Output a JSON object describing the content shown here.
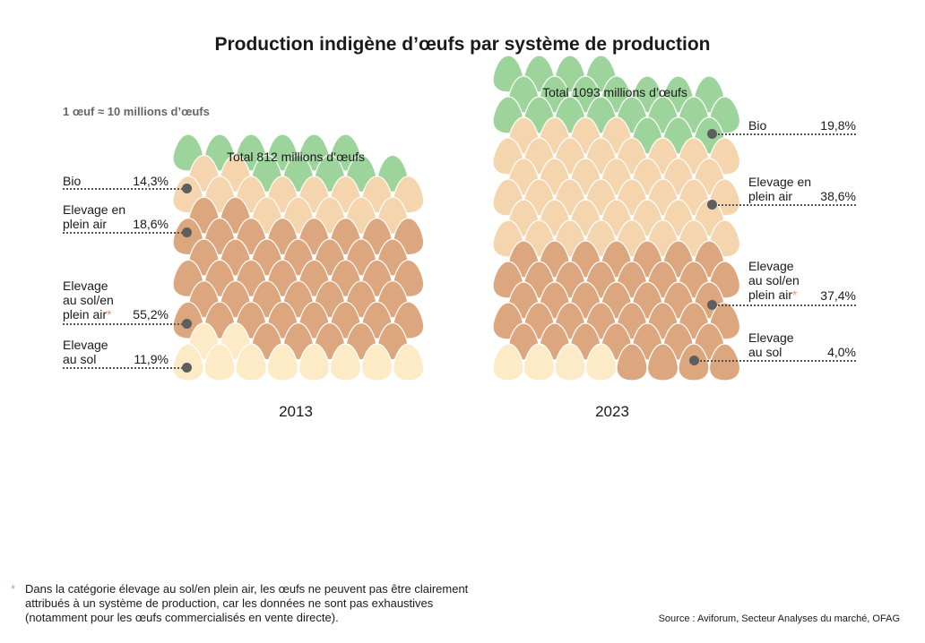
{
  "title": "Production indigène d’œufs par système de production",
  "unit_note": "1 œuf ≈ 10 millions d’œufs",
  "colors": {
    "bio": "#9dd49b",
    "plein_air": "#f4d5ae",
    "sol_plein_air": "#dca77f",
    "sol": "#fdebc8",
    "outline": "#ffffff",
    "leader": "#555555",
    "asterisk": "#e8926f"
  },
  "chart_data": {
    "type": "pictogram",
    "title": "Production indigène d’œufs par système de production",
    "unit": "1 œuf ≈ 10 millions d’œufs",
    "categories": [
      "Bio",
      "Elevage en plein air",
      "Elevage au sol/en plein air*",
      "Elevage au sol"
    ],
    "series": [
      {
        "year": "2013",
        "total_label": "Total 812 millions d’œufs",
        "total": 812,
        "shares_pct": [
          14.3,
          18.6,
          55.2,
          11.9
        ]
      },
      {
        "year": "2023",
        "total_label": "Total 1093 millions d’œufs",
        "total": 1093,
        "shares_pct": [
          19.8,
          38.6,
          37.4,
          4.0
        ]
      }
    ]
  },
  "panel_2013": {
    "total": "Total 812 millions d’œufs",
    "year": "2013",
    "labels": [
      {
        "text": "Bio",
        "pct": "14,3%"
      },
      {
        "text1": "Elevage en",
        "text2": "plein air",
        "pct": "18,6%"
      },
      {
        "text1": "Elevage",
        "text2": "au sol/en",
        "text3": "plein air",
        "star": "*",
        "pct": "55,2%"
      },
      {
        "text1": "Elevage",
        "text2": "au sol",
        "pct": "11,9%"
      }
    ]
  },
  "panel_2023": {
    "total": "Total 1093 millions d’œufs",
    "year": "2023",
    "labels": [
      {
        "text": "Bio",
        "pct": "19,8%"
      },
      {
        "text1": "Elevage en",
        "text2": "plein air",
        "pct": "38,6%"
      },
      {
        "text1": "Elevage",
        "text2": "au sol/en",
        "text3": "plein air",
        "star": "*",
        "pct": "37,4%"
      },
      {
        "text1": "Elevage",
        "text2": "au sol",
        "pct": "4,0%"
      }
    ]
  },
  "footnote": {
    "star": "*",
    "text": "Dans la catégorie élevage au sol/en plein air, les œufs ne peuvent pas être clairement attribués à un système de production, car les données ne sont pas exhaustives (notamment pour les œufs commercialisés en vente directe)."
  },
  "source": "Source : Aviforum, Secteur Analyses du marché, OFAG"
}
